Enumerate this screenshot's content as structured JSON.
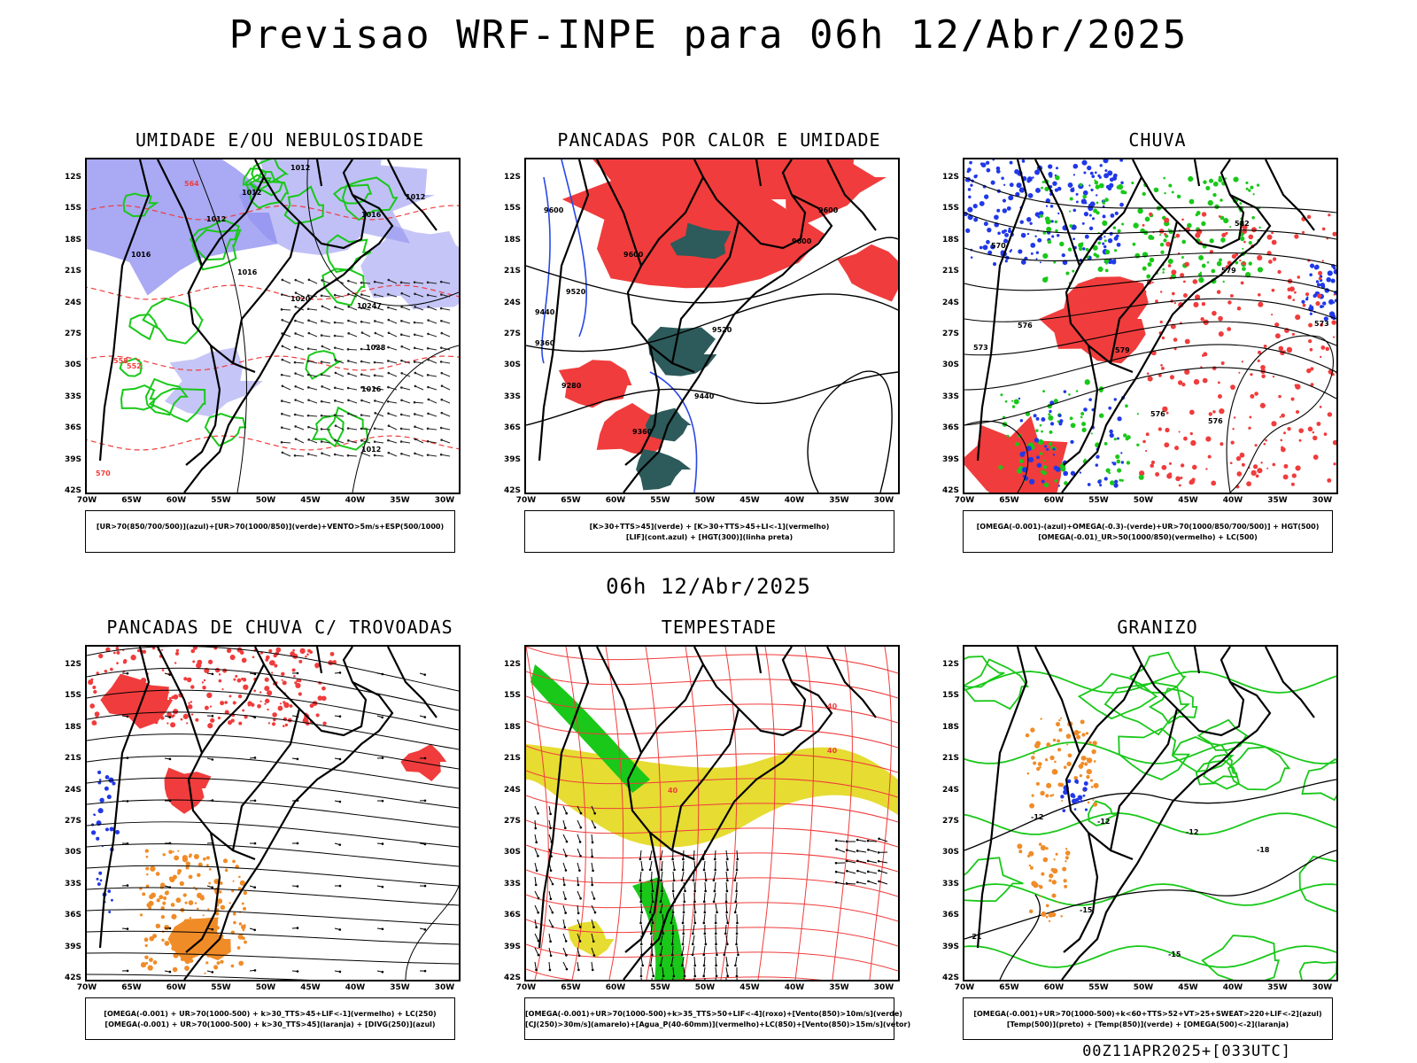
{
  "header": {
    "title": "Previsao WRF-INPE  para 06h 12/Abr/2025"
  },
  "middle_label": "06h 12/Abr/2025",
  "footer_stamp": "00Z11APR2025+[033UTC]",
  "axes": {
    "lat_labels": [
      "12S",
      "15S",
      "18S",
      "21S",
      "24S",
      "27S",
      "30S",
      "33S",
      "36S",
      "39S",
      "42S"
    ],
    "lon_labels": [
      "70W",
      "65W",
      "60W",
      "55W",
      "50W",
      "45W",
      "40W",
      "35W",
      "30W"
    ]
  },
  "panels": [
    {
      "title": "UMIDADE E/OU NEBULOSIDADE",
      "legend": [
        "[UR>70(850/700/500)](azul)+[UR>70(1000/850)](verde)+VENTO>5m/s+ESP(500/1000)"
      ],
      "contour_labels": [
        "1012",
        "1012",
        "1012",
        "1012",
        "1016",
        "1016",
        "1016",
        "1020",
        "10247",
        "1028",
        "1016",
        "1012",
        "570",
        "552",
        "564",
        "558"
      ]
    },
    {
      "title": "PANCADAS POR CALOR E UMIDADE",
      "legend": [
        "[K>30+TTS>45](verde) + [K>30+TTS>45+LI<-1](vermelho)",
        "[LIF](cont.azul) + [HGT(300)](linha preta)"
      ],
      "contour_labels": [
        "9600",
        "9600",
        "9600",
        "9600",
        "9520",
        "9440",
        "9360",
        "9520",
        "9440",
        "9280",
        "9360"
      ]
    },
    {
      "title": "CHUVA",
      "legend": [
        "[OMEGA(-0.001)-(azul)+OMEGA(-0.3)-(verde)+UR>70(1000/850/700/500)] + HGT(500)",
        "[OMEGA(-0.01)_UR>50(1000/850)(vermelho) + LC(500)"
      ],
      "contour_labels": [
        "582",
        "579",
        "573",
        "576",
        "579",
        "573",
        "576",
        "576",
        "570"
      ]
    },
    {
      "title": "PANCADAS DE CHUVA C/ TROVOADAS",
      "legend": [
        "[OMEGA(-0.001) + UR>70(1000-500) + k>30_TTS>45+LIF<-1](vermelho) + LC(250)",
        "[OMEGA(-0.001) + UR>70(1000-500) + k>30_TTS>45](laranja) + [DIVG(250)](azul)"
      ],
      "contour_labels": []
    },
    {
      "title": "TEMPESTADE",
      "legend": [
        "[OMEGA(-0.001)+UR>70(1000-500)+k>35_TTS>50+LIF<-4](roxo)+[Vento(850)>10m/s](verde)",
        "[CJ(250)>30m/s](amarelo)+[Agua_P(40-60mm)](vermelho)+LC(850)+[Vento(850)>15m/s](vetor)"
      ],
      "contour_labels": [
        "40",
        "40",
        "40"
      ]
    },
    {
      "title": "GRANIZO",
      "legend": [
        "[OMEGA(-0.001)+UR>70(1000-500)+k<60+TTS>52+VT>25+SWEAT>220+LIF<-2](azul)",
        "[Temp(500)](preto) + [Temp(850)](verde) + [OMEGA(500)<-2](laranja)"
      ],
      "contour_labels": [
        "-12",
        "-15",
        "-12",
        "-18",
        "-15",
        "-21",
        "-12"
      ]
    }
  ],
  "colors": {
    "blue": "#8c8cf0",
    "green": "#19c819",
    "red": "#f03c3c",
    "orange": "#f08c28",
    "yellow": "#e6dc32",
    "teal": "#2d5a5a"
  }
}
